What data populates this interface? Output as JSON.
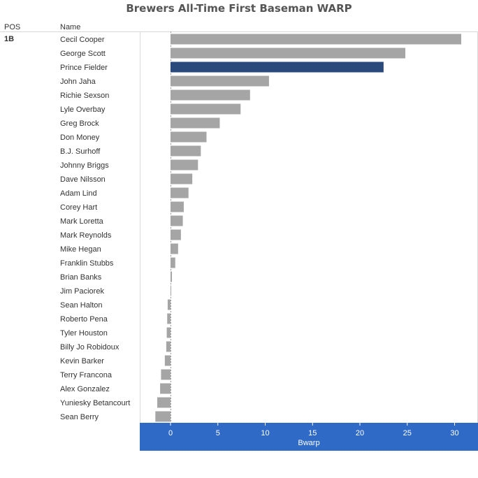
{
  "header": {
    "pos_label": "POS",
    "name_label": "Name",
    "pos_value": "1B"
  },
  "colors": {
    "bar": "#a5a5a5",
    "highlight": "#2b4a7c",
    "axis_band": "#2f6ac7",
    "axis_text": "#ffffff",
    "gridline": "#dddddd",
    "zero_line": "#999999"
  },
  "chart_data": {
    "type": "bar",
    "orientation": "horizontal",
    "title": "Brewers All-Time First Baseman WARP",
    "xlabel": "Bwarp",
    "xlim": [
      -1.6,
      32
    ],
    "xticks": [
      0,
      5,
      10,
      15,
      20,
      25,
      30
    ],
    "grid": false,
    "highlight": "Prince Fielder",
    "categories": [
      "Cecil Cooper",
      "George Scott",
      "Prince Fielder",
      "John Jaha",
      "Richie Sexson",
      "Lyle Overbay",
      "Greg Brock",
      "Don Money",
      "B.J. Surhoff",
      "Johnny Briggs",
      "Dave Nilsson",
      "Adam Lind",
      "Corey Hart",
      "Mark Loretta",
      "Mark Reynolds",
      "Mike Hegan",
      "Franklin Stubbs",
      "Brian Banks",
      "Jim Paciorek",
      "Sean Halton",
      "Roberto Pena",
      "Tyler Houston",
      "Billy Jo Robidoux",
      "Kevin Barker",
      "Terry Francona",
      "Alex Gonzalez",
      "Yuniesky Betancourt",
      "Sean Berry"
    ],
    "values": [
      30.7,
      24.8,
      22.5,
      10.4,
      8.4,
      7.4,
      5.2,
      3.8,
      3.2,
      2.9,
      2.3,
      1.9,
      1.4,
      1.3,
      1.1,
      0.8,
      0.5,
      0.15,
      0.05,
      -0.3,
      -0.35,
      -0.4,
      -0.45,
      -0.6,
      -1.0,
      -1.1,
      -1.4,
      -1.6
    ]
  }
}
